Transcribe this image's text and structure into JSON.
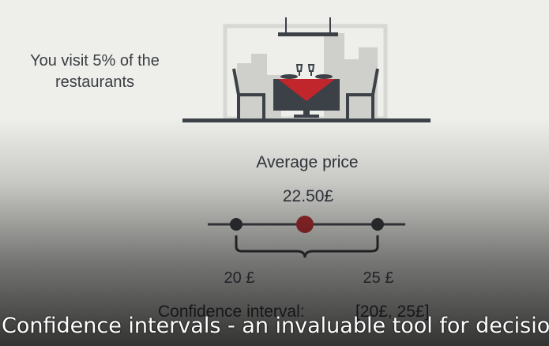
{
  "scene": {
    "visit_text_line1": "You visit 5% of the",
    "visit_text_line2": "restaurants",
    "average_price_label": "Average price",
    "average_value": "22.50£",
    "lower_bound": "20 £",
    "upper_bound": "25 £",
    "confidence_interval_label": "Confidence interval:",
    "confidence_interval_range": "[20£, 25£]"
  },
  "caption": {
    "text": "Confidence intervals - an invaluable tool for decision m"
  },
  "colors": {
    "ink": "#3c4148",
    "accent_red": "#c0262c",
    "building": "#c9c9c6"
  },
  "icons": {
    "illustration": "restaurant-table-icon"
  }
}
